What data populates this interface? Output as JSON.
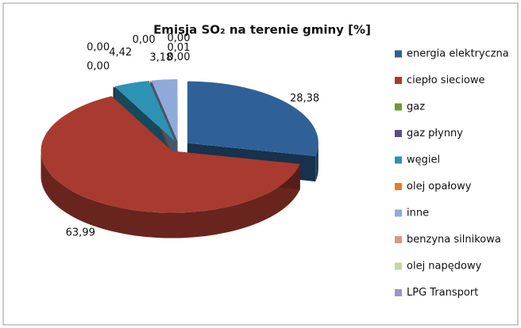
{
  "chart_data": {
    "type": "pie",
    "title": "Emisja SO₂ na terenie gminy [%]",
    "categories": [
      "energia elektryczna",
      "ciepło sieciowe",
      "gaz",
      "gaz płynny",
      "węgiel",
      "olej opałowy",
      "inne",
      "benzyna silnikowa",
      "olej napędowy",
      "LPG Transport"
    ],
    "values": [
      28.38,
      63.99,
      0.0,
      0.0,
      4.42,
      0.0,
      3.18,
      0.01,
      0.0,
      0.0
    ],
    "value_labels": [
      "28,38",
      "63,99",
      "0,00",
      "0,00",
      "4,42",
      "0,00",
      "3,18",
      "0,01",
      "0,00",
      "0,00"
    ],
    "colors": [
      "#2f6198",
      "#a93a30",
      "#6e9a37",
      "#5e4b86",
      "#2d92b4",
      "#e27c2c",
      "#8eaad8",
      "#d89593",
      "#c2d89b",
      "#9b95c2"
    ],
    "legend": "right"
  }
}
